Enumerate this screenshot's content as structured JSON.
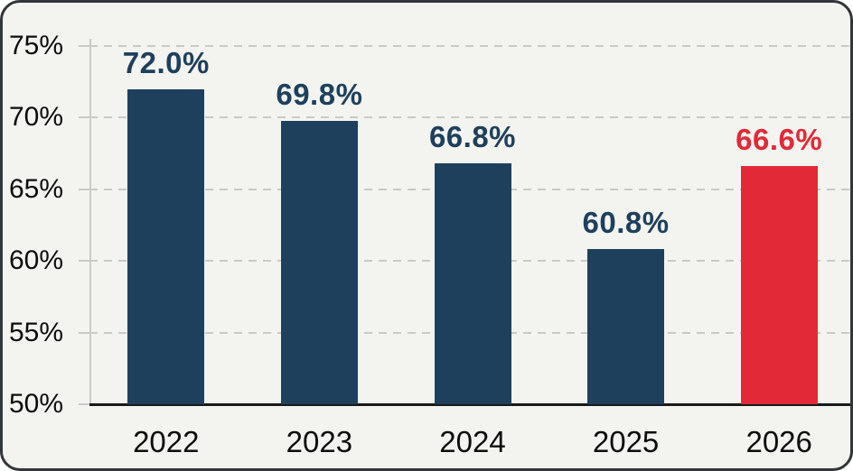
{
  "chart_data": {
    "type": "bar",
    "title": "",
    "xlabel": "",
    "ylabel": "",
    "categories": [
      "2022",
      "2023",
      "2024",
      "2025",
      "2026"
    ],
    "values": [
      72.0,
      69.8,
      66.8,
      60.8,
      66.6
    ],
    "bar_value_labels": [
      "72.0%",
      "69.8%",
      "66.8%",
      "60.8%",
      "66.6%"
    ],
    "bar_colors": [
      "#1f405c",
      "#1f405c",
      "#1f405c",
      "#1f405c",
      "#e22937"
    ],
    "value_label_colors": [
      "#1f405c",
      "#1f405c",
      "#1f405c",
      "#1f405c",
      "#e22937"
    ],
    "ylim": [
      50,
      75
    ],
    "yticks": [
      50,
      55,
      60,
      65,
      70,
      75
    ],
    "ytick_labels": [
      "50%",
      "55%",
      "60%",
      "65%",
      "70%",
      "75%"
    ],
    "grid": "horizontal-dashed",
    "legend": "none",
    "highlight": {
      "category": "2026",
      "value_label": "66.6%",
      "color": "#e22937"
    }
  },
  "colors": {
    "bar_navy": "#1f405c",
    "bar_red": "#e22937",
    "background": "#f3f4f0",
    "frame_border": "#32363a",
    "gridline": "#c9cac6",
    "axis_text": "#0d0d0d",
    "baseline": "#17191b"
  }
}
